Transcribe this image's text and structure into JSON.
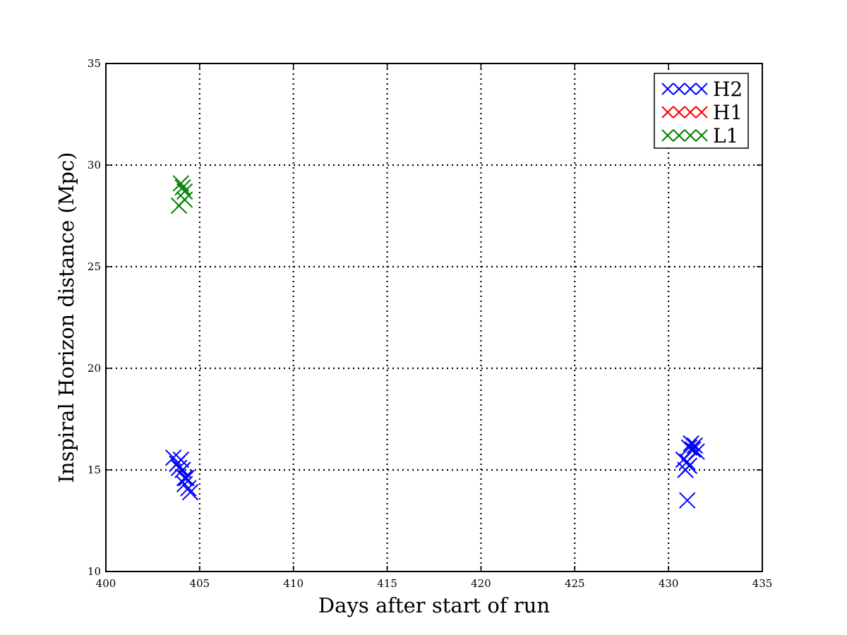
{
  "chart_data": {
    "type": "scatter",
    "title": "",
    "xlabel": "Days after start of run",
    "ylabel": "Inspiral Horizon distance (Mpc)",
    "xlim": [
      400,
      435
    ],
    "ylim": [
      10,
      35
    ],
    "xticks": [
      400,
      405,
      410,
      415,
      420,
      425,
      430,
      435
    ],
    "yticks": [
      10,
      15,
      20,
      25,
      30,
      35
    ],
    "grid": true,
    "marker": "x",
    "legend": {
      "placement": "top-right"
    },
    "series": [
      {
        "name": "H2",
        "color": "#0000ff",
        "points": [
          [
            403.6,
            15.6
          ],
          [
            403.8,
            15.3
          ],
          [
            403.9,
            15.1
          ],
          [
            404.0,
            15.5
          ],
          [
            404.1,
            15.0
          ],
          [
            404.2,
            14.6
          ],
          [
            404.2,
            14.3
          ],
          [
            404.4,
            14.1
          ],
          [
            404.5,
            13.9
          ],
          [
            404.3,
            14.6
          ],
          [
            430.8,
            15.5
          ],
          [
            430.9,
            15.0
          ],
          [
            431.0,
            15.4
          ],
          [
            431.0,
            13.5
          ],
          [
            431.1,
            16.1
          ],
          [
            431.2,
            16.3
          ],
          [
            431.3,
            16.0
          ],
          [
            431.4,
            16.2
          ],
          [
            431.5,
            15.9
          ],
          [
            431.1,
            15.2
          ]
        ]
      },
      {
        "name": "H1",
        "color": "#ff0000",
        "points": []
      },
      {
        "name": "L1",
        "color": "#008000",
        "points": [
          [
            403.9,
            28.0
          ],
          [
            404.0,
            29.1
          ],
          [
            404.1,
            28.9
          ],
          [
            404.2,
            28.7
          ],
          [
            404.2,
            28.3
          ]
        ]
      }
    ]
  }
}
